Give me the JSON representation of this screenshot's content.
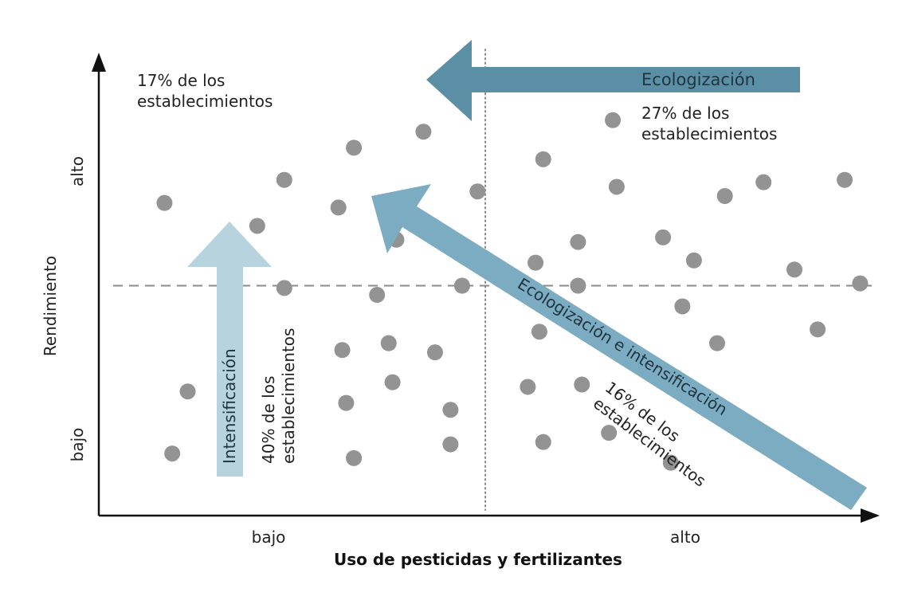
{
  "chart_data": {
    "type": "scatter",
    "xlabel": "Uso de pesticidas y fertilizantes",
    "ylabel": "Rendimiento",
    "x_ticks": [
      "bajo",
      "alto"
    ],
    "y_ticks": [
      "bajo",
      "alto"
    ],
    "xlim": [
      0,
      10
    ],
    "ylim": [
      0,
      10
    ],
    "grid": false,
    "threshold_x": 5,
    "threshold_y": 5,
    "points": [
      {
        "x": 0.85,
        "y": 6.8
      },
      {
        "x": 2.4,
        "y": 7.3
      },
      {
        "x": 3.3,
        "y": 8.0
      },
      {
        "x": 4.2,
        "y": 8.35
      },
      {
        "x": 2.05,
        "y": 6.3
      },
      {
        "x": 3.1,
        "y": 6.7
      },
      {
        "x": 3.85,
        "y": 6.0
      },
      {
        "x": 4.9,
        "y": 7.05
      },
      {
        "x": 2.4,
        "y": 4.95
      },
      {
        "x": 3.6,
        "y": 4.8
      },
      {
        "x": 4.7,
        "y": 5.0
      },
      {
        "x": 1.15,
        "y": 2.7
      },
      {
        "x": 0.95,
        "y": 1.35
      },
      {
        "x": 3.15,
        "y": 3.6
      },
      {
        "x": 3.75,
        "y": 3.75
      },
      {
        "x": 4.35,
        "y": 3.55
      },
      {
        "x": 3.8,
        "y": 2.9
      },
      {
        "x": 3.2,
        "y": 2.45
      },
      {
        "x": 4.55,
        "y": 2.3
      },
      {
        "x": 3.3,
        "y": 1.25
      },
      {
        "x": 4.55,
        "y": 1.55
      },
      {
        "x": 6.65,
        "y": 8.6
      },
      {
        "x": 5.75,
        "y": 7.75
      },
      {
        "x": 6.7,
        "y": 7.15
      },
      {
        "x": 8.1,
        "y": 6.95
      },
      {
        "x": 8.6,
        "y": 7.25
      },
      {
        "x": 9.65,
        "y": 7.3
      },
      {
        "x": 6.2,
        "y": 5.95
      },
      {
        "x": 7.3,
        "y": 6.05
      },
      {
        "x": 5.65,
        "y": 5.5
      },
      {
        "x": 7.7,
        "y": 5.55
      },
      {
        "x": 6.2,
        "y": 5.0
      },
      {
        "x": 9.0,
        "y": 5.35
      },
      {
        "x": 9.85,
        "y": 5.05
      },
      {
        "x": 7.55,
        "y": 4.55
      },
      {
        "x": 5.7,
        "y": 4.0
      },
      {
        "x": 8.0,
        "y": 3.75
      },
      {
        "x": 9.3,
        "y": 4.05
      },
      {
        "x": 5.55,
        "y": 2.8
      },
      {
        "x": 6.25,
        "y": 2.85
      },
      {
        "x": 5.75,
        "y": 1.6
      },
      {
        "x": 6.6,
        "y": 1.8
      },
      {
        "x": 7.4,
        "y": 1.15
      }
    ],
    "annotations": {
      "top_left": [
        "17% de los",
        "establecimientos"
      ],
      "top_right": [
        "27% de los",
        "establecimientos"
      ],
      "bottom_left": [
        "40% de los",
        "establecimientos"
      ],
      "bottom_right": [
        "16% de los",
        "establecimientos"
      ],
      "arrow_ecologizacion": "Ecologización",
      "arrow_intensificacion": "Intensificación",
      "arrow_ambas": "Ecologización e intensificación"
    },
    "colors": {
      "points": "#939393",
      "arrow_ecologizacion": "#5a8fa6",
      "arrow_intensificacion": "#b6d3de",
      "arrow_ambas": "#7bacc1",
      "axis": "#111111",
      "divider": "#8a8a8a"
    }
  }
}
